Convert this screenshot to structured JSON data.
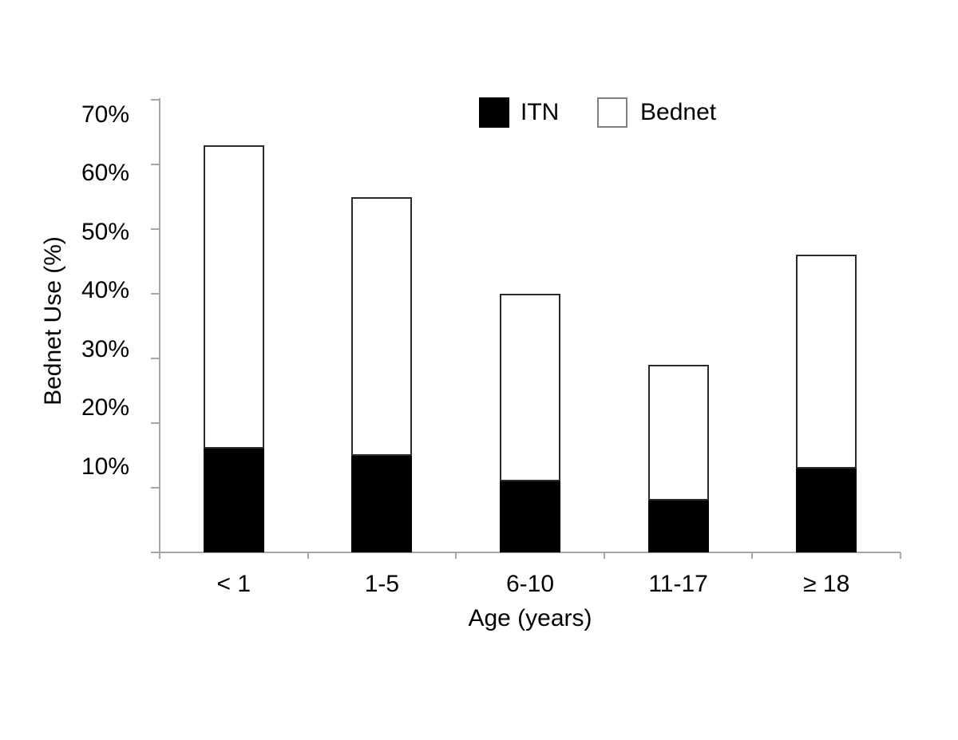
{
  "figure": {
    "background": "#ffffff",
    "text_color": "#000000",
    "axis_color": "#a6a6a6",
    "bar_border_color": "#2b2b2b",
    "legend_swatch_border": "#7f7f7f",
    "itn_fill": "#000000",
    "bednet_fill": "#ffffff"
  },
  "chart_data": {
    "type": "bar",
    "stacked": true,
    "categories": [
      "< 1",
      "1-5",
      "6-10",
      "11-17",
      "≥ 18"
    ],
    "series": [
      {
        "name": "ITN",
        "values": [
          16,
          15,
          11,
          8,
          13
        ]
      },
      {
        "name": "Bednet",
        "values": [
          47,
          40,
          29,
          21,
          33
        ]
      }
    ],
    "stack_totals": [
      63,
      55,
      40,
      29,
      46
    ],
    "title": "",
    "xlabel": "Age (years)",
    "ylabel": "Bednet Use (%)",
    "ylim": [
      0,
      70
    ],
    "ytick_step": 10,
    "ytick_labels": [
      "10%",
      "20%",
      "30%",
      "40%",
      "50%",
      "60%",
      "70%"
    ],
    "grid": false,
    "legend_position": "top-center"
  }
}
